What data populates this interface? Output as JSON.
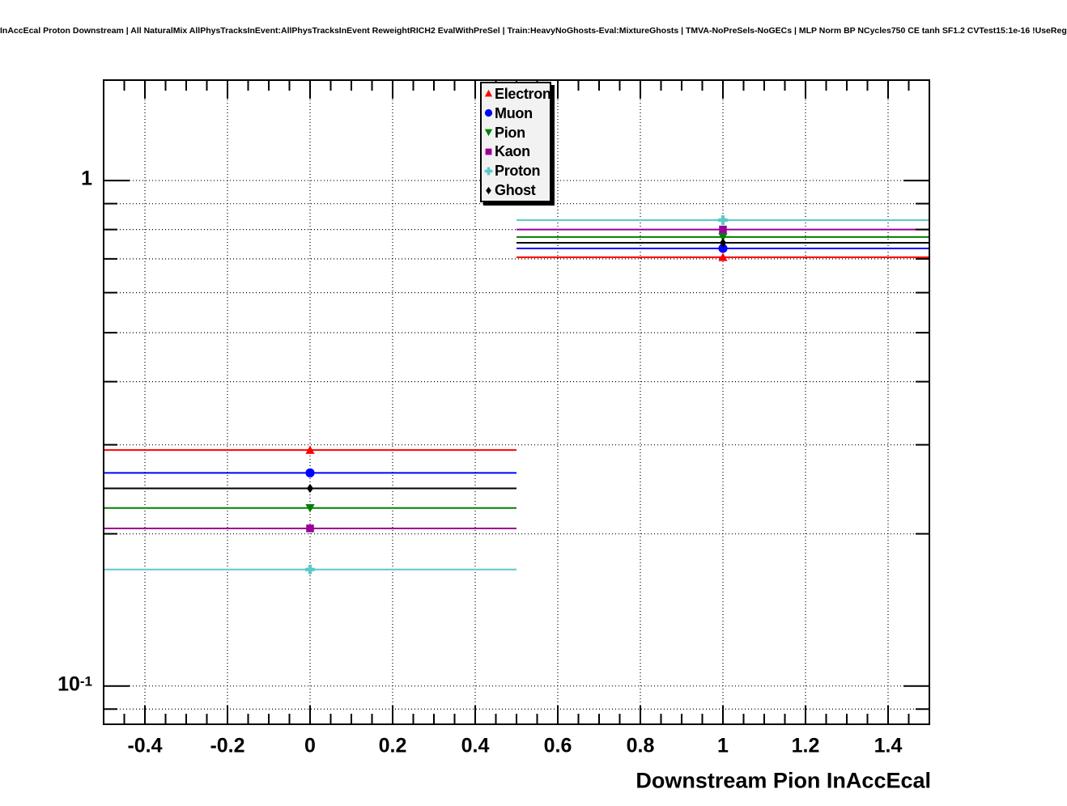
{
  "title": "InAccEcal Proton Downstream | All NaturalMix AllPhysTracksInEvent:AllPhysTracksInEvent ReweightRICH2 EvalWithPreSel | Train:HeavyNoGhosts-Eval:MixtureGhosts | TMVA-NoPreSels-NoGECs | MLP Norm BP NCycles750 CE tanh SF1.2 CVTest15:1e-16 !UseReg",
  "chart_data": {
    "type": "scatter",
    "title": "",
    "xlabel": "Downstream Pion InAccEcal",
    "ylabel": "",
    "x_scale": "linear",
    "y_scale": "log",
    "xlim": [
      -0.5,
      1.5
    ],
    "ylim": [
      0.084,
      1.58
    ],
    "grid": true,
    "x": [
      0,
      1
    ],
    "bin_half_width": 0.5,
    "x_major_ticks": [
      -0.4,
      -0.2,
      0,
      0.2,
      0.4,
      0.6,
      0.8,
      1,
      1.2,
      1.4
    ],
    "x_tick_labels": [
      "-0.4",
      "-0.2",
      "0",
      "0.2",
      "0.4",
      "0.6",
      "0.8",
      "1",
      "1.2",
      "1.4"
    ],
    "x_minor_step": 0.05,
    "y_major_ticks": [
      1,
      0.1
    ],
    "y_tick_labels": [
      "1",
      "10^-1"
    ],
    "y_minor_ticks": [
      0.9,
      0.8,
      0.7,
      0.6,
      0.5,
      0.4,
      0.3,
      0.2,
      0.09
    ],
    "legend_position": "top-center",
    "series": [
      {
        "name": "Electron",
        "color": "#ff0000",
        "marker": "triangle-up",
        "values": [
          0.293,
          0.705
        ]
      },
      {
        "name": "Muon",
        "color": "#0000ff",
        "marker": "circle",
        "values": [
          0.264,
          0.734
        ]
      },
      {
        "name": "Pion",
        "color": "#008000",
        "marker": "triangle-down",
        "values": [
          0.225,
          0.773
        ]
      },
      {
        "name": "Kaon",
        "color": "#990099",
        "marker": "square",
        "values": [
          0.205,
          0.8
        ]
      },
      {
        "name": "Proton",
        "color": "#5cc8c8",
        "marker": "plus",
        "values": [
          0.17,
          0.835
        ]
      },
      {
        "name": "Ghost",
        "color": "#000000",
        "marker": "diamond",
        "values": [
          0.246,
          0.753
        ]
      }
    ]
  }
}
